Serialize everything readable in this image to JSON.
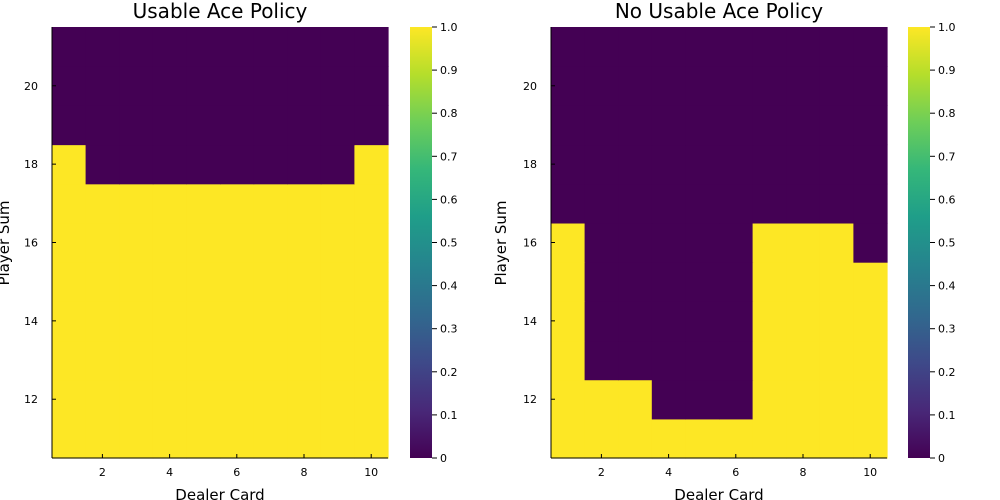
{
  "chart_data": [
    {
      "type": "heatmap",
      "title": "Usable Ace Policy",
      "xlabel": "Dealer Card",
      "ylabel": "Player Sum",
      "x": [
        1,
        2,
        3,
        4,
        5,
        6,
        7,
        8,
        9,
        10
      ],
      "y": [
        11,
        12,
        13,
        14,
        15,
        16,
        17,
        18,
        19,
        20,
        21
      ],
      "xlim": [
        0.5,
        10.5
      ],
      "ylim": [
        10.5,
        21.5
      ],
      "x_ticks": [
        2,
        4,
        6,
        8,
        10
      ],
      "y_ticks": [
        12,
        14,
        16,
        18,
        20
      ],
      "z": [
        [
          1,
          1,
          1,
          1,
          1,
          1,
          1,
          1,
          1,
          1
        ],
        [
          1,
          1,
          1,
          1,
          1,
          1,
          1,
          1,
          1,
          1
        ],
        [
          1,
          1,
          1,
          1,
          1,
          1,
          1,
          1,
          1,
          1
        ],
        [
          1,
          1,
          1,
          1,
          1,
          1,
          1,
          1,
          1,
          1
        ],
        [
          1,
          1,
          1,
          1,
          1,
          1,
          1,
          1,
          1,
          1
        ],
        [
          1,
          1,
          1,
          1,
          1,
          1,
          1,
          1,
          1,
          1
        ],
        [
          1,
          1,
          1,
          1,
          1,
          1,
          1,
          1,
          1,
          1
        ],
        [
          1,
          0,
          0,
          0,
          0,
          0,
          0,
          0,
          0,
          1
        ],
        [
          0,
          0,
          0,
          0,
          0,
          0,
          0,
          0,
          0,
          0
        ],
        [
          0,
          0,
          0,
          0,
          0,
          0,
          0,
          0,
          0,
          0
        ],
        [
          0,
          0,
          0,
          0,
          0,
          0,
          0,
          0,
          0,
          0
        ]
      ],
      "colorbar": {
        "range": [
          0,
          1
        ],
        "ticks": [
          "0",
          "0.1",
          "0.2",
          "0.3",
          "0.4",
          "0.5",
          "0.6",
          "0.7",
          "0.8",
          "0.9",
          "1.0"
        ]
      },
      "colormap": "viridis",
      "grid": false
    },
    {
      "type": "heatmap",
      "title": "No Usable Ace Policy",
      "xlabel": "Dealer Card",
      "ylabel": "Player Sum",
      "x": [
        1,
        2,
        3,
        4,
        5,
        6,
        7,
        8,
        9,
        10
      ],
      "y": [
        11,
        12,
        13,
        14,
        15,
        16,
        17,
        18,
        19,
        20,
        21
      ],
      "xlim": [
        0.5,
        10.5
      ],
      "ylim": [
        10.5,
        21.5
      ],
      "x_ticks": [
        2,
        4,
        6,
        8,
        10
      ],
      "y_ticks": [
        12,
        14,
        16,
        18,
        20
      ],
      "z": [
        [
          1,
          1,
          1,
          1,
          1,
          1,
          1,
          1,
          1,
          1
        ],
        [
          1,
          1,
          1,
          0,
          0,
          0,
          1,
          1,
          1,
          1
        ],
        [
          1,
          0,
          0,
          0,
          0,
          0,
          1,
          1,
          1,
          1
        ],
        [
          1,
          0,
          0,
          0,
          0,
          0,
          1,
          1,
          1,
          1
        ],
        [
          1,
          0,
          0,
          0,
          0,
          0,
          1,
          1,
          1,
          1
        ],
        [
          1,
          0,
          0,
          0,
          0,
          0,
          1,
          1,
          1,
          0
        ],
        [
          0,
          0,
          0,
          0,
          0,
          0,
          0,
          0,
          0,
          0
        ],
        [
          0,
          0,
          0,
          0,
          0,
          0,
          0,
          0,
          0,
          0
        ],
        [
          0,
          0,
          0,
          0,
          0,
          0,
          0,
          0,
          0,
          0
        ],
        [
          0,
          0,
          0,
          0,
          0,
          0,
          0,
          0,
          0,
          0
        ],
        [
          0,
          0,
          0,
          0,
          0,
          0,
          0,
          0,
          0,
          0
        ]
      ],
      "colorbar": {
        "range": [
          0,
          1
        ],
        "ticks": [
          "0",
          "0.1",
          "0.2",
          "0.3",
          "0.4",
          "0.5",
          "0.6",
          "0.7",
          "0.8",
          "0.9",
          "1.0"
        ]
      },
      "colormap": "viridis",
      "grid": false
    }
  ],
  "colors": {
    "viridis_low": "#440154",
    "viridis_high": "#fde725",
    "viridis_stops": [
      "#440154",
      "#482878",
      "#3e4989",
      "#31688e",
      "#26828e",
      "#1f9e89",
      "#35b779",
      "#6ece58",
      "#b5de2b",
      "#fde725"
    ],
    "axis": "#000000",
    "background": "#ffffff"
  }
}
